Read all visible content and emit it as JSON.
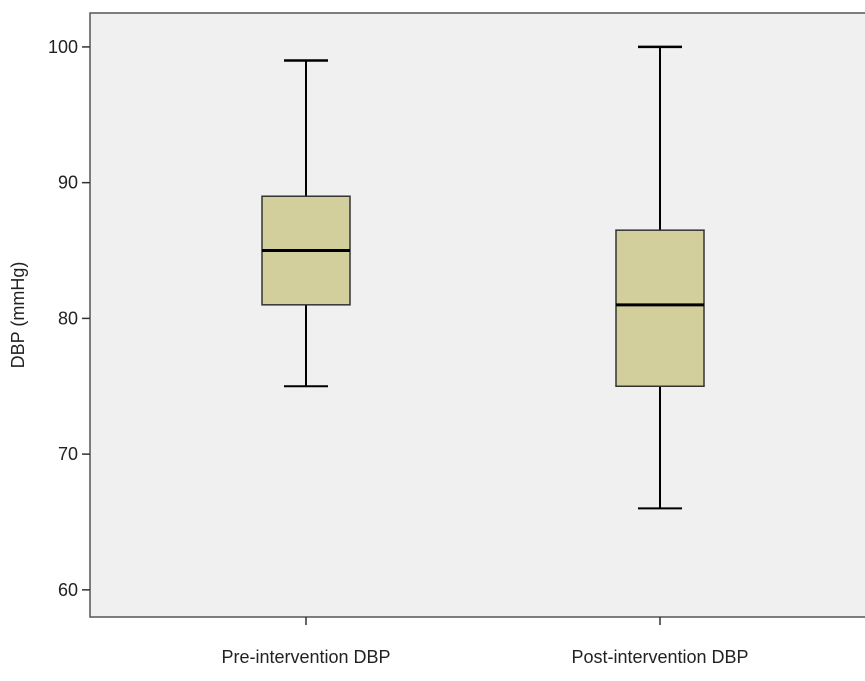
{
  "chart_data": {
    "type": "boxplot",
    "title": "",
    "xlabel": "",
    "ylabel": "DBP (mmHg)",
    "ylim": [
      58,
      102.5
    ],
    "yticks": [
      60,
      70,
      80,
      90,
      100
    ],
    "grid": false,
    "categories": [
      "Pre-intervention DBP",
      "Post-intervention DBP"
    ],
    "boxes": [
      {
        "category": "Pre-intervention DBP",
        "min": 75,
        "q1": 81,
        "median": 85,
        "q3": 89,
        "max": 99
      },
      {
        "category": "Post-intervention DBP",
        "min": 66,
        "q1": 75,
        "median": 81,
        "q3": 86.5,
        "max": 100
      }
    ],
    "colors": {
      "box_fill": "#d3cf9c",
      "plot_bg": "#f0f0f0",
      "stroke": "#000000",
      "frame": "#555555"
    }
  }
}
